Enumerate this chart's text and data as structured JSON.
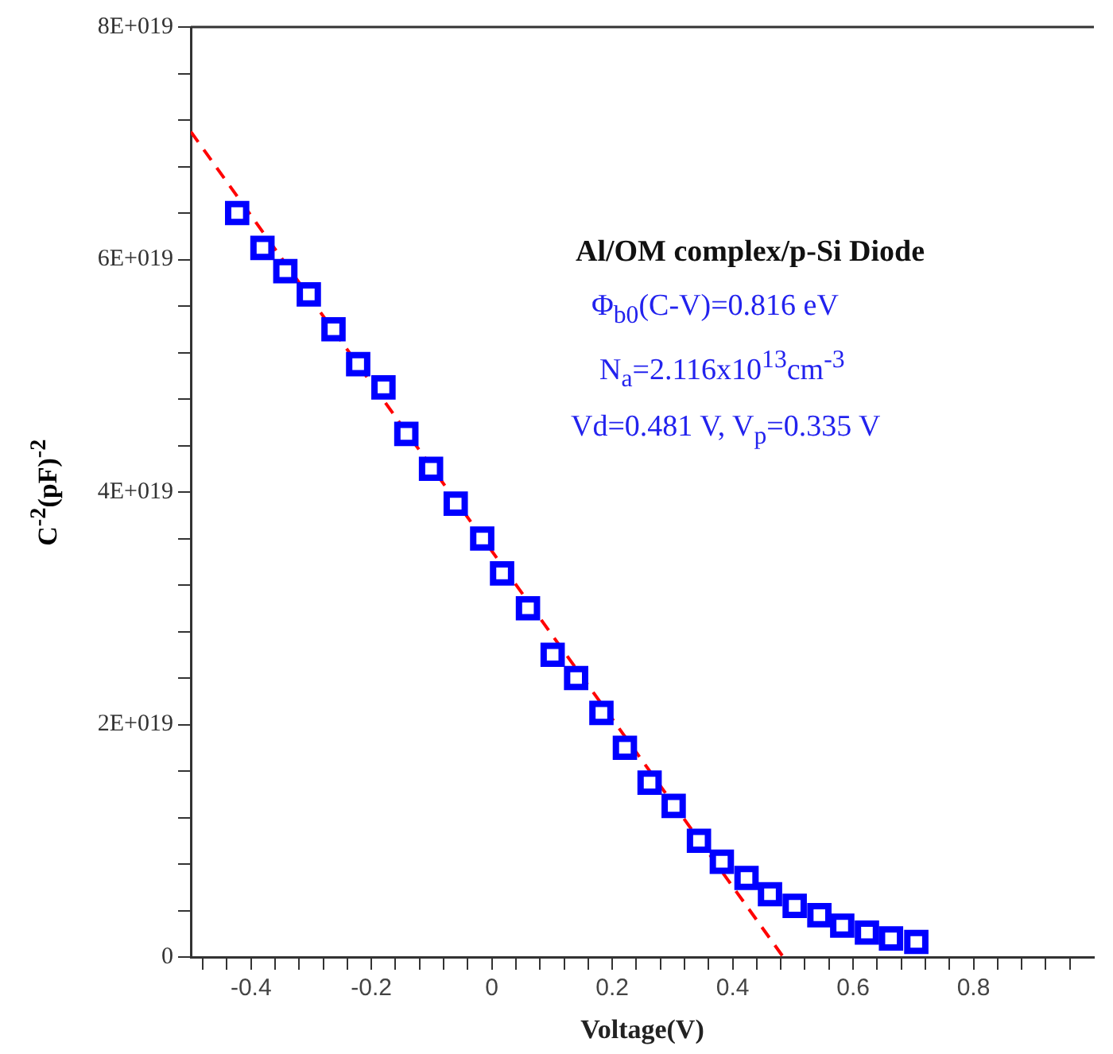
{
  "chart_data": {
    "type": "scatter",
    "xlabel": "Voltage(V)",
    "ylabel": "C$^{-2}$(pF)$^{-2}$",
    "annotations": [
      "Al/OM complex/p-Si Diode",
      "Φ$_{b0}$(C-V)=0.816 eV",
      "N$_{a}$=2.116x10$^{13}$cm$^{-3}$",
      "Vd=0.481 V, V$_{p}$=0.335 V"
    ],
    "xlim": [
      -0.5,
      1.0
    ],
    "ylim": [
      0,
      8e+19
    ],
    "xticks": [
      {
        "value": -0.48,
        "label": null
      },
      {
        "value": -0.44,
        "label": null
      },
      -0.4,
      {
        "value": -0.36,
        "label": null
      },
      {
        "value": -0.32,
        "label": null
      },
      {
        "value": -0.28,
        "label": null
      },
      {
        "value": -0.24,
        "label": null
      },
      -0.2,
      {
        "value": -0.16,
        "label": null
      },
      {
        "value": -0.12,
        "label": null
      },
      {
        "value": -0.08,
        "label": null
      },
      {
        "value": -0.04,
        "label": null
      },
      0,
      {
        "value": 0.04,
        "label": null
      },
      {
        "value": 0.08,
        "label": null
      },
      {
        "value": 0.12,
        "label": null
      },
      {
        "value": 0.16,
        "label": null
      },
      0.2,
      {
        "value": 0.24,
        "label": null
      },
      {
        "value": 0.28,
        "label": null
      },
      {
        "value": 0.32,
        "label": null
      },
      {
        "value": 0.36,
        "label": null
      },
      0.4,
      {
        "value": 0.44,
        "label": null
      },
      {
        "value": 0.48,
        "label": null
      },
      {
        "value": 0.52,
        "label": null
      },
      {
        "value": 0.56,
        "label": null
      },
      0.6,
      {
        "value": 0.64,
        "label": null
      },
      {
        "value": 0.68,
        "label": null
      },
      {
        "value": 0.72,
        "label": null
      },
      {
        "value": 0.76,
        "label": null
      },
      0.8,
      {
        "value": 0.84,
        "label": null
      },
      {
        "value": 0.88,
        "label": null
      },
      {
        "value": 0.92,
        "label": null
      },
      {
        "value": 0.96,
        "label": null
      }
    ],
    "yticks": [
      0,
      {
        "value": 4e+18,
        "label": null
      },
      {
        "value": 8e+18,
        "label": null
      },
      {
        "value": 1.2e+19,
        "label": null
      },
      {
        "value": 1.6e+19,
        "label": null
      },
      {
        "value": 2e+19,
        "label": "2E+019"
      },
      {
        "value": 2.4e+19,
        "label": null
      },
      {
        "value": 2.8e+19,
        "label": null
      },
      {
        "value": 3.2e+19,
        "label": null
      },
      {
        "value": 3.6e+19,
        "label": null
      },
      {
        "value": 4e+19,
        "label": "4E+019"
      },
      {
        "value": 4.4e+19,
        "label": null
      },
      {
        "value": 4.8e+19,
        "label": null
      },
      {
        "value": 5.2e+19,
        "label": null
      },
      {
        "value": 5.6e+19,
        "label": null
      },
      {
        "value": 6e+19,
        "label": "6E+019"
      },
      {
        "value": 6.4e+19,
        "label": null
      },
      {
        "value": 6.8e+19,
        "label": null
      },
      {
        "value": 7.2e+19,
        "label": null
      },
      {
        "value": 7.6e+19,
        "label": null
      },
      {
        "value": 8e+19,
        "label": "8E+019"
      }
    ],
    "grid": false,
    "legend": false,
    "series": [
      {
        "type": "scatter",
        "color": "#0000ff",
        "marker": "square",
        "x": [
          -0.423,
          -0.381,
          -0.343,
          -0.304,
          -0.263,
          -0.222,
          -0.18,
          -0.142,
          -0.101,
          -0.06,
          -0.016,
          0.017,
          0.06,
          0.101,
          0.14,
          0.182,
          0.221,
          0.262,
          0.302,
          0.344,
          0.382,
          0.423,
          0.462,
          0.503,
          0.544,
          0.582,
          0.623,
          0.663,
          0.705
        ],
        "values": [
          6.4e+19,
          6.1e+19,
          5.9e+19,
          5.7e+19,
          5.4e+19,
          5.1e+19,
          4.9e+19,
          4.5e+19,
          4.2e+19,
          3.9e+19,
          3.6e+19,
          3.3e+19,
          3e+19,
          2.6e+19,
          2.4e+19,
          2.1e+19,
          1.8e+19,
          1.5e+19,
          1.3e+19,
          1e+19,
          8.2e+18,
          6.8e+18,
          5.4e+18,
          4.4e+18,
          3.6e+18,
          2.7e+18,
          2.1e+18,
          1.6e+18,
          1.3e+18
        ]
      },
      {
        "type": "line",
        "color": "#ff0000",
        "marker": "none",
        "line_style": "dashed",
        "x": [
          -0.5,
          0.484
        ],
        "values": [
          7.1e+19,
          0
        ]
      }
    ]
  }
}
